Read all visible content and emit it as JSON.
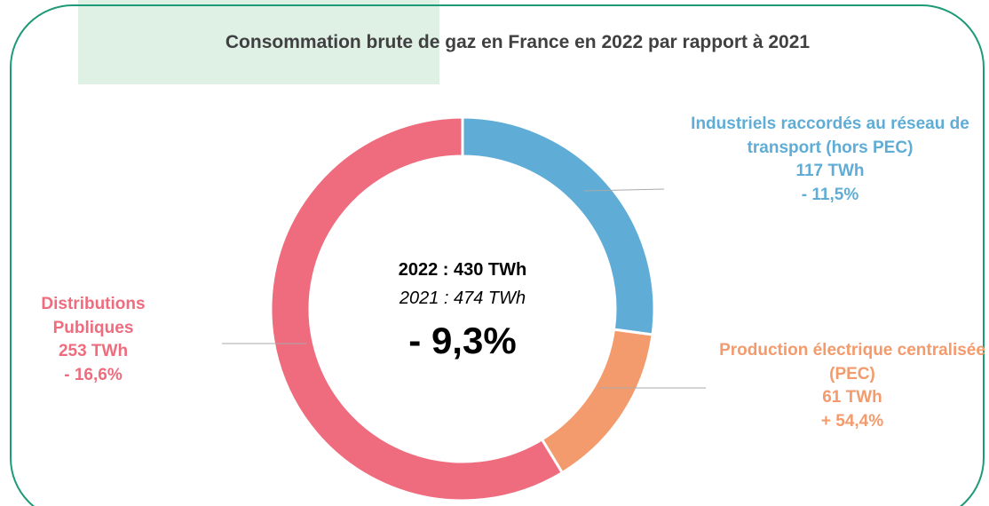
{
  "chart_data": {
    "type": "pie",
    "donut": true,
    "title": "Consommation brute de gaz en France en 2022 par rapport à 2021",
    "categories": [
      "Industriels raccordés au réseau de transport (hors PEC)",
      "Production électrique centralisée (PEC)",
      "Distributions Publiques"
    ],
    "values": [
      117,
      61,
      253
    ],
    "value_labels": [
      "117 TWh",
      "61 TWh",
      "253 TWh"
    ],
    "changes": [
      "- 11,5%",
      "+ 54,4%",
      "- 16,6%"
    ],
    "colors": [
      "#5fadd6",
      "#f39b6c",
      "#ee6c7e"
    ],
    "annotations": [
      "2022 : 430 TWh",
      "2021 : 474 TWh",
      "- 9,3%"
    ]
  }
}
